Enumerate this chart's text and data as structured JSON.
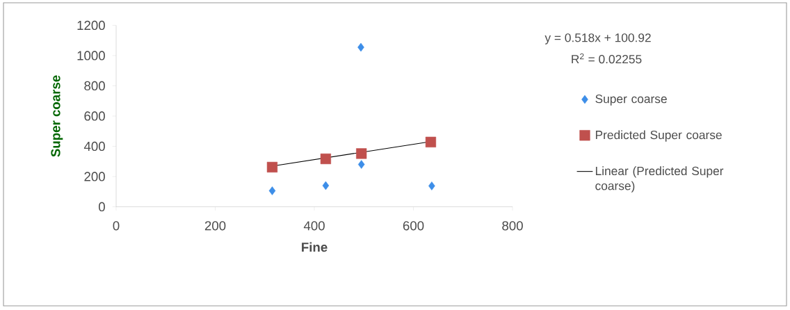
{
  "chart_data": {
    "type": "scatter",
    "xlabel": "Fine",
    "ylabel": "Super coarse",
    "xlim": [
      0,
      800
    ],
    "xticks": [
      0,
      200,
      400,
      600,
      800
    ],
    "ylim": [
      0,
      1200
    ],
    "yticks": [
      0,
      200,
      400,
      600,
      800,
      1000,
      1200
    ],
    "legend": "right",
    "annotations": [
      "y = 0.518x + 100.92",
      "R$^{2}$ = 0.02255"
    ],
    "series": [
      {
        "name": "Super coarse",
        "marker": "diamond",
        "color": "#3d8ee8",
        "x": [
          315,
          423,
          494,
          495,
          637
        ],
        "values": [
          106,
          140,
          1055,
          280,
          138
        ]
      },
      {
        "name": "Predicted Super coarse",
        "marker": "square",
        "color": "#c0504d",
        "x": [
          315,
          423,
          495,
          635
        ],
        "values": [
          262,
          317,
          352,
          428
        ]
      },
      {
        "name": "Linear (Predicted Super coarse)",
        "type": "line",
        "marker": "none",
        "color": "#000000",
        "x": [
          315,
          637
        ],
        "values": [
          269,
          432
        ]
      }
    ]
  }
}
